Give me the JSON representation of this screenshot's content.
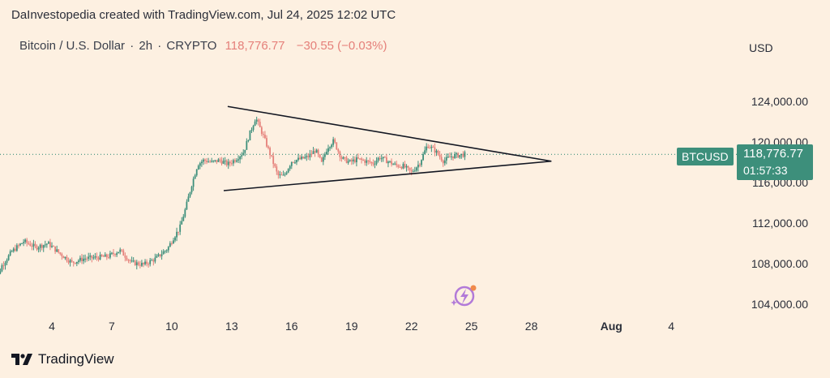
{
  "header": "DaInvestopedia created with TradingView.com, Jul 24, 2025 12:02 UTC",
  "symbol": {
    "name": "Bitcoin / U.S. Dollar",
    "interval": "2h",
    "exchange": "CRYPTO",
    "separator": "·",
    "price": "118,776.77",
    "change": "−30.55 (−0.03%)"
  },
  "currency": "USD",
  "price_tag": {
    "ticker": "BTCUSD",
    "price": "118,776.77",
    "countdown": "01:57:33"
  },
  "brand": "TradingView",
  "colors": {
    "background": "#fdf0e1",
    "up": "#3d8f7b",
    "down": "#e5807a",
    "current_price": "#3d8f7b"
  },
  "chart_data": {
    "type": "candlestick",
    "x_ticks": [
      "4",
      "7",
      "10",
      "13",
      "16",
      "19",
      "22",
      "25",
      "28",
      "Aug",
      "4"
    ],
    "x_tick_days": [
      4,
      7,
      10,
      13,
      16,
      19,
      22,
      25,
      28,
      32,
      35
    ],
    "y_ticks": [
      "124,000.00",
      "120,000.00",
      "116,000.00",
      "112,000.00",
      "108,000.00",
      "104,000.00"
    ],
    "y_tick_values": [
      124000,
      120000,
      116000,
      112000,
      108000,
      104000
    ],
    "ylim": [
      102000,
      128000
    ],
    "current_price": 118776.77,
    "price_path": [
      [
        1.0,
        105200
      ],
      [
        1.5,
        107800
      ],
      [
        2.0,
        109200
      ],
      [
        2.6,
        110200
      ],
      [
        3.2,
        109600
      ],
      [
        3.8,
        110000
      ],
      [
        4.4,
        109000
      ],
      [
        5.0,
        108100
      ],
      [
        5.6,
        108500
      ],
      [
        6.2,
        108600
      ],
      [
        6.8,
        108700
      ],
      [
        7.4,
        109300
      ],
      [
        8.0,
        108100
      ],
      [
        8.6,
        107900
      ],
      [
        9.2,
        108500
      ],
      [
        9.8,
        109500
      ],
      [
        10.1,
        110600
      ],
      [
        10.4,
        111500
      ],
      [
        10.7,
        113500
      ],
      [
        11.0,
        115800
      ],
      [
        11.3,
        117800
      ],
      [
        11.6,
        118200
      ],
      [
        12.0,
        118000
      ],
      [
        12.4,
        118200
      ],
      [
        12.8,
        117800
      ],
      [
        13.2,
        118300
      ],
      [
        13.6,
        119000
      ],
      [
        13.9,
        120800
      ],
      [
        14.2,
        122400
      ],
      [
        14.6,
        120500
      ],
      [
        15.0,
        118400
      ],
      [
        15.3,
        116700
      ],
      [
        15.6,
        116600
      ],
      [
        16.0,
        118100
      ],
      [
        16.4,
        118300
      ],
      [
        16.8,
        118500
      ],
      [
        17.2,
        119200
      ],
      [
        17.5,
        117900
      ],
      [
        17.8,
        119500
      ],
      [
        18.1,
        120100
      ],
      [
        18.5,
        118400
      ],
      [
        18.9,
        118000
      ],
      [
        19.3,
        118300
      ],
      [
        19.7,
        118100
      ],
      [
        20.1,
        117900
      ],
      [
        20.4,
        118500
      ],
      [
        20.8,
        118100
      ],
      [
        21.2,
        117700
      ],
      [
        21.6,
        117600
      ],
      [
        22.0,
        117000
      ],
      [
        22.4,
        117900
      ],
      [
        22.8,
        119700
      ],
      [
        23.2,
        119100
      ],
      [
        23.6,
        118100
      ],
      [
        24.0,
        118600
      ],
      [
        24.4,
        118700
      ],
      [
        24.7,
        118777
      ]
    ],
    "triangle": {
      "upper": [
        [
          12.8,
          123500
        ],
        [
          29.0,
          118100
        ]
      ],
      "lower": [
        [
          12.6,
          115200
        ],
        [
          29.0,
          118100
        ]
      ]
    }
  }
}
